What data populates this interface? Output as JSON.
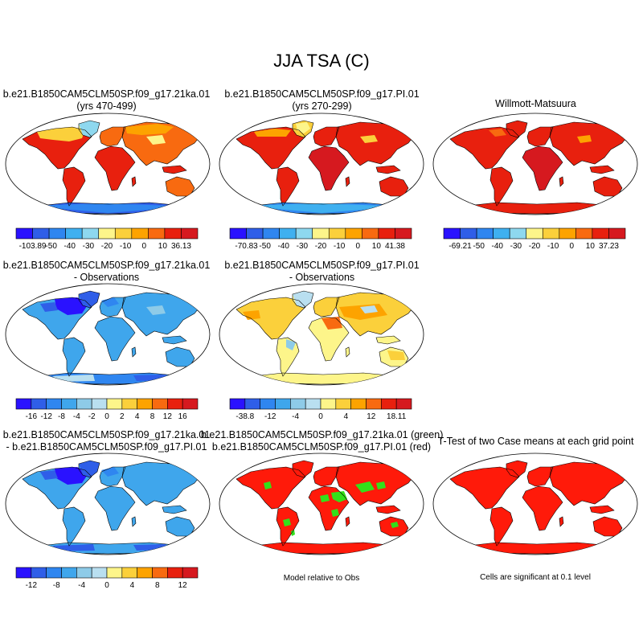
{
  "figure": {
    "title": "JJA TSA (C)"
  },
  "palettes": {
    "abs": [
      "#2a12ff",
      "#2f5ee8",
      "#2f86f0",
      "#3fb0f0",
      "#8ed8ef",
      "#fdf58a",
      "#fbd03b",
      "#fda300",
      "#f86a10",
      "#e8200e",
      "#d6191f"
    ],
    "diff": [
      "#2a12ff",
      "#2f5ee8",
      "#2f86f0",
      "#3fa6ec",
      "#8ecbe8",
      "#b9dff0",
      "#fdf58a",
      "#fbd03b",
      "#fda300",
      "#f86a10",
      "#e8200e",
      "#d6191f"
    ],
    "sig_green": "#33e01a",
    "sig_red": "#ff1a0a",
    "coast": "#000000"
  },
  "chart_data": [
    {
      "type": "heatmap",
      "id": "p1",
      "title_line1": "b.e21.B1850CAM5CLM50SP.f09_g17.21ka.01",
      "title_line2": "(yrs 470-499)",
      "field": {
        "min": -103.89,
        "max": 36.13
      },
      "colorbar": {
        "ticks": [
          "-103.89",
          "-50",
          "-40",
          "-30",
          "-20",
          "-10",
          "0",
          "10",
          "36.13"
        ],
        "n_colors": 11
      }
    },
    {
      "type": "heatmap",
      "id": "p2",
      "title_line1": "b.e21.B1850CAM5CLM50SP.f09_g17.PI.01",
      "title_line2": "(yrs 270-299)",
      "field": {
        "min": -70.83,
        "max": 41.38
      },
      "colorbar": {
        "ticks": [
          "-70.83",
          "-50",
          "-40",
          "-30",
          "-20",
          "-10",
          "0",
          "10",
          "41.38"
        ],
        "n_colors": 11
      }
    },
    {
      "type": "heatmap",
      "id": "p3",
      "title_line1": "Willmott-Matsuura",
      "title_line2": "",
      "field": {
        "min": -69.21,
        "max": 37.23
      },
      "colorbar": {
        "ticks": [
          "-69.21",
          "-50",
          "-40",
          "-30",
          "-20",
          "-10",
          "0",
          "10",
          "37.23"
        ],
        "n_colors": 11
      }
    },
    {
      "type": "heatmap",
      "id": "p4",
      "title_line1": "b.e21.B1850CAM5CLM50SP.f09_g17.21ka.01",
      "title_line2": "- Observations",
      "field": {
        "min": -16,
        "max": 16
      },
      "colorbar": {
        "ticks": [
          "-16",
          "-12",
          "-8",
          "-4",
          "-2",
          "0",
          "2",
          "4",
          "8",
          "12",
          "16"
        ],
        "n_colors": 12
      }
    },
    {
      "type": "heatmap",
      "id": "p5",
      "title_line1": "b.e21.B1850CAM5CLM50SP.f09_g17.PI.01",
      "title_line2": "- Observations",
      "field": {
        "min": -38.8,
        "max": 18.11
      },
      "colorbar": {
        "ticks": [
          "-38.8",
          "-12",
          "-4",
          "0",
          "4",
          "12",
          "18.11"
        ],
        "n_colors": 12
      }
    },
    {
      "type": "heatmap",
      "id": "p7",
      "title_line1": "b.e21.B1850CAM5CLM50SP.f09_g17.21ka.01",
      "title_line2": "- b.e21.B1850CAM5CLM50SP.f09_g17.PI.01",
      "field": {
        "min": -12,
        "max": 12
      },
      "colorbar": {
        "ticks": [
          "-12",
          "-8",
          "-4",
          "0",
          "4",
          "8",
          "12"
        ],
        "n_colors": 12
      }
    },
    {
      "type": "heatmap",
      "id": "p8",
      "title_line1": "b.e21.B1850CAM5CLM50SP.f09_g17.21ka.01 (green)",
      "title_line2": "b.e21.B1850CAM5CLM50SP.f09_g17.PI.01 (red)",
      "caption": "Model relative to Obs"
    },
    {
      "type": "heatmap",
      "id": "p9",
      "title_line1": "T-Test of two Case means at each grid point",
      "title_line2": "",
      "caption": "Cells are significant at 0.1 level"
    }
  ]
}
